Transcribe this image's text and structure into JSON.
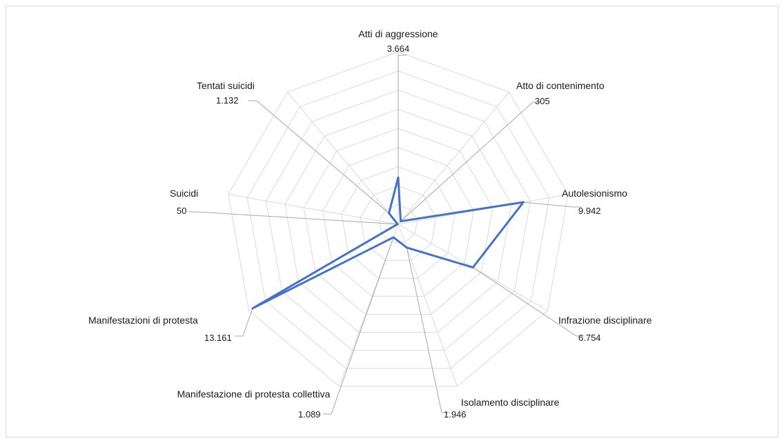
{
  "chart_data": {
    "type": "radar",
    "categories": [
      "Atti di aggressione",
      "Atto di contenimento",
      "Autolesionismo",
      "Infrazione disciplinare",
      "Isolamento disciplinare",
      "Manifestazione di protesta collettiva",
      "Manifestazioni di protesta",
      "Suicidi",
      "Tentati suicidi"
    ],
    "series": [
      {
        "color": "#4472c4",
        "values": [
          3664,
          305,
          9942,
          6754,
          1946,
          1089,
          13161,
          50,
          1132
        ],
        "value_labels": [
          "3.664",
          "305",
          "9.942",
          "6.754",
          "1.946",
          "1.089",
          "13.161",
          "50",
          "1.132"
        ]
      }
    ],
    "ylim": [
      0,
      13500
    ],
    "yticks": [
      0,
      1500,
      3000,
      4500,
      6000,
      7500,
      9000,
      10500,
      12000,
      13500
    ],
    "grid": true
  }
}
